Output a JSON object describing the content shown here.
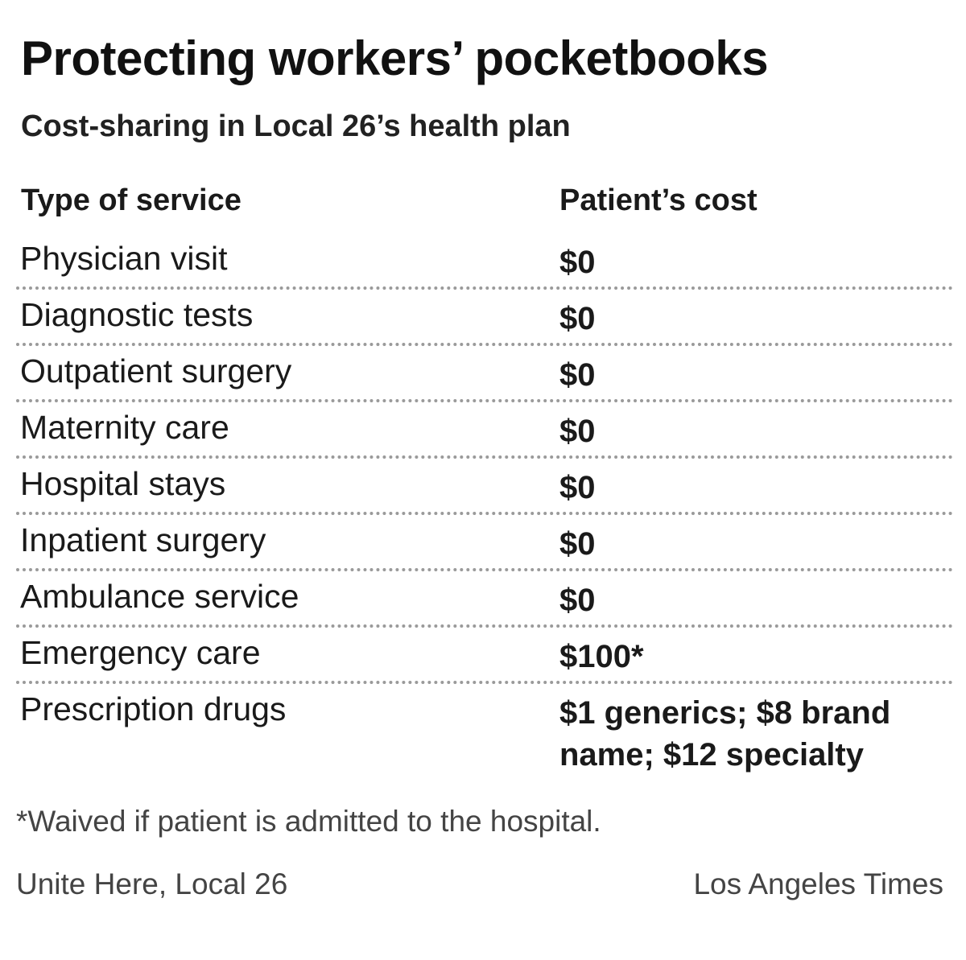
{
  "title": "Protecting workers’ pocketbooks",
  "subtitle": "Cost-sharing in Local 26’s health plan",
  "chart_data": {
    "type": "table",
    "title": "Protecting workers’ pocketbooks",
    "subtitle": "Cost-sharing in Local 26’s health plan",
    "columns": [
      "Type of service",
      "Patient’s cost"
    ],
    "rows": [
      {
        "service": "Physician visit",
        "cost": "$0"
      },
      {
        "service": "Diagnostic tests",
        "cost": "$0"
      },
      {
        "service": "Outpatient surgery",
        "cost": "$0"
      },
      {
        "service": "Maternity care",
        "cost": "$0"
      },
      {
        "service": "Hospital stays",
        "cost": "$0"
      },
      {
        "service": "Inpatient surgery",
        "cost": "$0"
      },
      {
        "service": "Ambulance service",
        "cost": "$0"
      },
      {
        "service": "Emergency care",
        "cost": "$100*"
      },
      {
        "service": "Prescription drugs",
        "cost": "$1 generics; $8 brand name; $12 specialty"
      }
    ],
    "footnote": "*Waived if patient is admitted to the hospital.",
    "source": "Unite Here, Local 26",
    "credit": "Los Angeles Times"
  },
  "colors": {
    "text": "#1a1a1a",
    "muted": "#444444",
    "divider": "#9a9a9a",
    "background": "#ffffff"
  }
}
